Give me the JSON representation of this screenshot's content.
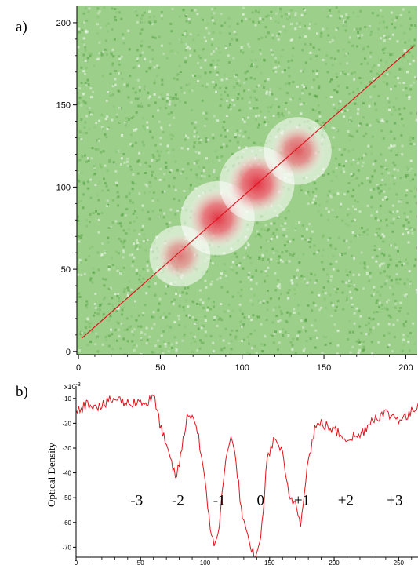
{
  "colors": {
    "background": "#ffffff",
    "heatmap_background": "#9ccf8a",
    "heatmap_speckle": "#4f9e3e",
    "hotspot": "#e4283a",
    "line": "#e0141e",
    "axis": "#000000"
  },
  "chart_data": [
    {
      "panel_label": "a)",
      "type": "heatmap",
      "xlim": [
        -1,
        207
      ],
      "ylim": [
        -2,
        210
      ],
      "x_ticks": [
        0,
        50,
        100,
        150,
        200
      ],
      "y_ticks": [
        0,
        50,
        100,
        150,
        200
      ],
      "x_tick_labels": [
        "0",
        "50",
        "100",
        "150",
        "200"
      ],
      "y_tick_labels": [
        "0",
        "50",
        "100",
        "150",
        "200"
      ],
      "hotspots": [
        {
          "x": 62,
          "y": 58,
          "strength": 0.35
        },
        {
          "x": 85,
          "y": 81,
          "strength": 0.95
        },
        {
          "x": 109,
          "y": 102,
          "strength": 1.0
        },
        {
          "x": 134,
          "y": 122,
          "strength": 0.65
        }
      ],
      "overlay_line": {
        "x": [
          2,
          205
        ],
        "y": [
          8,
          186
        ]
      }
    },
    {
      "panel_label": "b)",
      "type": "line",
      "ylabel": "Optical Density",
      "y_multiplier": "x10",
      "y_multiplier_exponent": "-3",
      "xlim": [
        0,
        265
      ],
      "ylim": [
        -74,
        -5
      ],
      "x_ticks": [
        0,
        50,
        100,
        150,
        200,
        250
      ],
      "y_ticks": [
        -10,
        -20,
        -30,
        -40,
        -50,
        -60,
        -70
      ],
      "x_tick_labels": [
        "0",
        "50",
        "100",
        "150",
        "200",
        "250"
      ],
      "y_tick_labels": [
        "-10",
        "-20",
        "-30",
        "-40",
        "-50",
        "-60",
        "-70"
      ],
      "series": [
        {
          "x": [
            0,
            10,
            20,
            30,
            40,
            50,
            55,
            60,
            65,
            70,
            75,
            78,
            82,
            86,
            90,
            95,
            100,
            104,
            107,
            110,
            113,
            117,
            120,
            124,
            128,
            132,
            136,
            140,
            142,
            145,
            148,
            152,
            156,
            160,
            165,
            170,
            174,
            177,
            180,
            185,
            190,
            200,
            210,
            220,
            230,
            240,
            250,
            258,
            265
          ],
          "y": [
            -14,
            -12,
            -13,
            -10,
            -12,
            -11,
            -12,
            -9,
            -20,
            -30,
            -38,
            -42,
            -30,
            -18,
            -16,
            -25,
            -45,
            -62,
            -68,
            -66,
            -50,
            -30,
            -26,
            -35,
            -55,
            -65,
            -72,
            -73,
            -70,
            -55,
            -35,
            -28,
            -27,
            -33,
            -50,
            -52,
            -60,
            -46,
            -35,
            -22,
            -20,
            -23,
            -26,
            -25,
            -18,
            -16,
            -18,
            -17,
            -12
          ]
        }
      ],
      "annotations": [
        {
          "text": "-3",
          "x": 47,
          "y": -53
        },
        {
          "text": "-2",
          "x": 79,
          "y": -53
        },
        {
          "text": "-1",
          "x": 111,
          "y": -53
        },
        {
          "text": "0",
          "x": 143,
          "y": -53
        },
        {
          "text": "+1",
          "x": 175,
          "y": -53
        },
        {
          "text": "+2",
          "x": 209,
          "y": -53
        },
        {
          "text": "+3",
          "x": 247,
          "y": -53
        }
      ]
    }
  ]
}
